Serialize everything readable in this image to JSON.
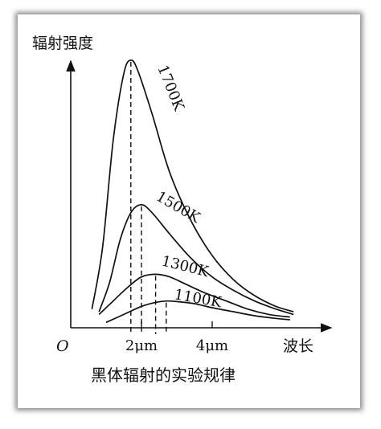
{
  "chart_data": {
    "type": "line",
    "title": "黑体辐射的实验规律",
    "ylabel": "辐射强度",
    "xlabel": "波长",
    "origin_label": "O",
    "x_ticks": [
      {
        "value": 2,
        "label": "2μm"
      },
      {
        "value": 4,
        "label": "4μm"
      }
    ],
    "xlim": [
      0,
      6.8
    ],
    "ylim": [
      0,
      1.0
    ],
    "grid": false,
    "legend": "none",
    "series": [
      {
        "name": "1700K",
        "peak_x": 1.7,
        "peak_y": 1.0,
        "x": [
          0.6,
          0.9,
          1.2,
          1.5,
          1.7,
          1.9,
          2.3,
          2.8,
          3.4,
          4.0,
          4.6,
          5.2,
          5.8,
          6.3
        ],
        "y": [
          0.07,
          0.3,
          0.7,
          0.95,
          1.0,
          0.96,
          0.8,
          0.58,
          0.4,
          0.27,
          0.18,
          0.12,
          0.08,
          0.06
        ]
      },
      {
        "name": "1500K",
        "peak_x": 2.0,
        "peak_y": 0.46,
        "x": [
          0.8,
          1.1,
          1.4,
          1.7,
          2.0,
          2.3,
          2.8,
          3.4,
          4.0,
          4.6,
          5.2,
          5.8,
          6.3
        ],
        "y": [
          0.06,
          0.17,
          0.33,
          0.43,
          0.46,
          0.43,
          0.35,
          0.26,
          0.19,
          0.14,
          0.1,
          0.07,
          0.05
        ]
      },
      {
        "name": "1300K",
        "peak_x": 2.4,
        "peak_y": 0.2,
        "x": [
          0.8,
          1.2,
          1.6,
          2.0,
          2.4,
          2.8,
          3.3,
          3.8,
          4.4,
          5.0,
          5.6,
          6.2
        ],
        "y": [
          0.05,
          0.1,
          0.15,
          0.19,
          0.2,
          0.19,
          0.16,
          0.13,
          0.1,
          0.07,
          0.05,
          0.04
        ]
      },
      {
        "name": "1100K",
        "peak_x": 2.7,
        "peak_y": 0.1,
        "x": [
          1.0,
          1.5,
          2.0,
          2.4,
          2.7,
          3.0,
          3.5,
          4.0,
          4.6,
          5.2,
          5.8,
          6.2
        ],
        "y": [
          0.02,
          0.05,
          0.08,
          0.095,
          0.1,
          0.098,
          0.09,
          0.075,
          0.06,
          0.045,
          0.035,
          0.03
        ]
      }
    ]
  }
}
